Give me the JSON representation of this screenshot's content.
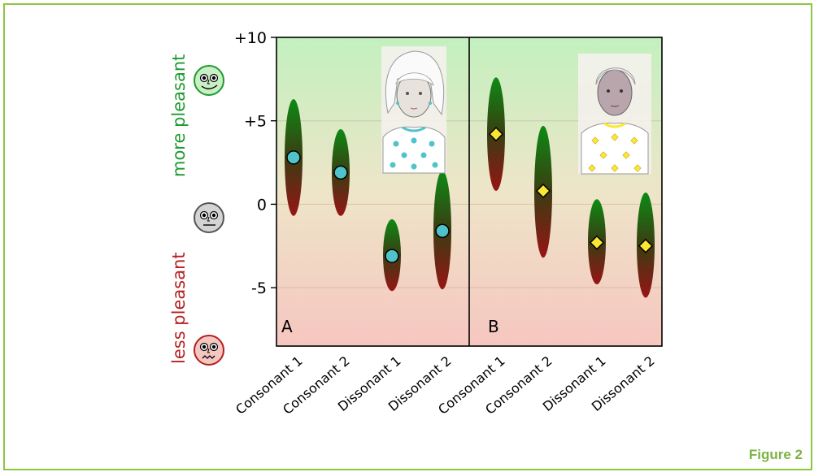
{
  "figure_label": "Figure 2",
  "chart_data": {
    "type": "scatter",
    "ylim": [
      -8.5,
      10
    ],
    "y_ticks": [
      {
        "value": 10,
        "label": "+10"
      },
      {
        "value": 5,
        "label": "+5"
      },
      {
        "value": 0,
        "label": "0"
      },
      {
        "value": -5,
        "label": "-5"
      }
    ],
    "y_labels": {
      "top": "more pleasant",
      "bottom": "less pleasant"
    },
    "colors": {
      "pleasant": "#1e9a2f",
      "unpleasant": "#b51f1f",
      "circle_marker": "#4fc3c9",
      "diamond_marker": "#fbe731",
      "bg_top": "#c3f0bf",
      "bg_bottom": "#f6c6c0"
    },
    "panels": [
      {
        "label": "A",
        "marker": "circle",
        "categories": [
          "Consonant 1",
          "Consonant 2",
          "Dissonant 1",
          "Dissonant 2"
        ],
        "values": [
          2.8,
          1.9,
          -3.1,
          -1.6
        ],
        "ranges": [
          [
            -0.7,
            6.3
          ],
          [
            -0.7,
            4.5
          ],
          [
            -5.2,
            -0.9
          ],
          [
            -5.1,
            2.0
          ]
        ],
        "icon": "woman-portrait-icon"
      },
      {
        "label": "B",
        "marker": "diamond",
        "categories": [
          "Consonant 1",
          "Consonant 2",
          "Dissonant 1",
          "Dissonant 2"
        ],
        "values": [
          4.2,
          0.8,
          -2.3,
          -2.5
        ],
        "ranges": [
          [
            0.8,
            7.6
          ],
          [
            -3.2,
            4.7
          ],
          [
            -4.8,
            0.3
          ],
          [
            -5.6,
            0.7
          ]
        ],
        "icon": "man-portrait-icon"
      }
    ]
  }
}
